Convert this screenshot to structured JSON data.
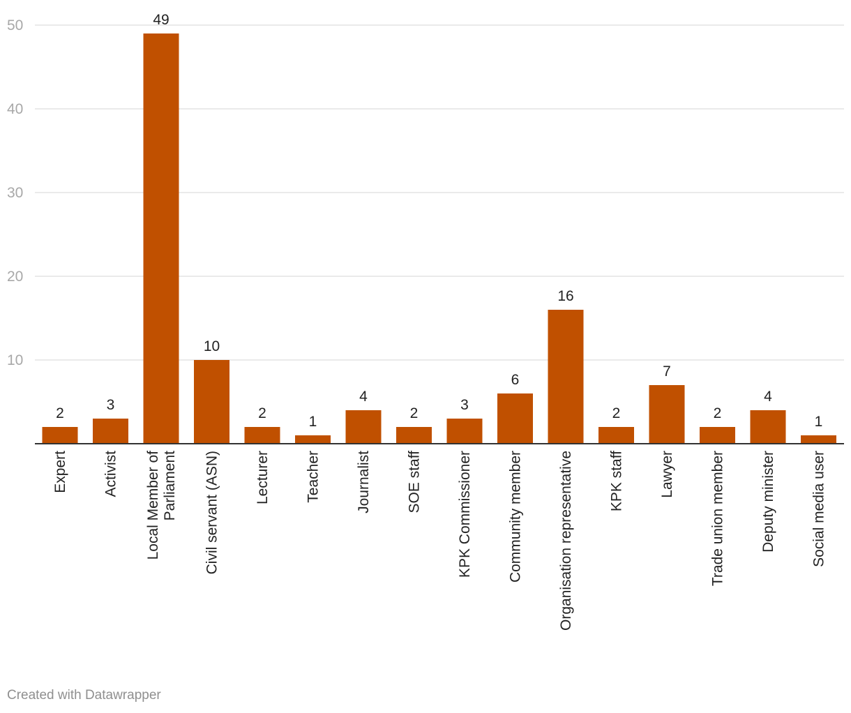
{
  "chart_data": {
    "type": "bar",
    "title": "",
    "xlabel": "",
    "ylabel": "",
    "ylim": [
      0,
      50
    ],
    "yticks": [
      10,
      20,
      30,
      40,
      50
    ],
    "grid": true,
    "bar_color": "#c05000",
    "categories": [
      [
        "Expert"
      ],
      [
        "Activist"
      ],
      [
        "Local Member of",
        "Parliament"
      ],
      [
        "Civil servant (ASN)"
      ],
      [
        "Lecturer"
      ],
      [
        "Teacher"
      ],
      [
        "Journalist"
      ],
      [
        "SOE staff"
      ],
      [
        "KPK Commissioner"
      ],
      [
        "Community member"
      ],
      [
        "Organisation representative"
      ],
      [
        "KPK staff"
      ],
      [
        "Lawyer"
      ],
      [
        "Trade union member"
      ],
      [
        "Deputy minister"
      ],
      [
        "Social media user"
      ]
    ],
    "values": [
      2,
      3,
      49,
      10,
      2,
      1,
      4,
      2,
      3,
      6,
      16,
      2,
      7,
      2,
      4,
      1
    ]
  },
  "footer": {
    "credit": "Created with Datawrapper"
  }
}
